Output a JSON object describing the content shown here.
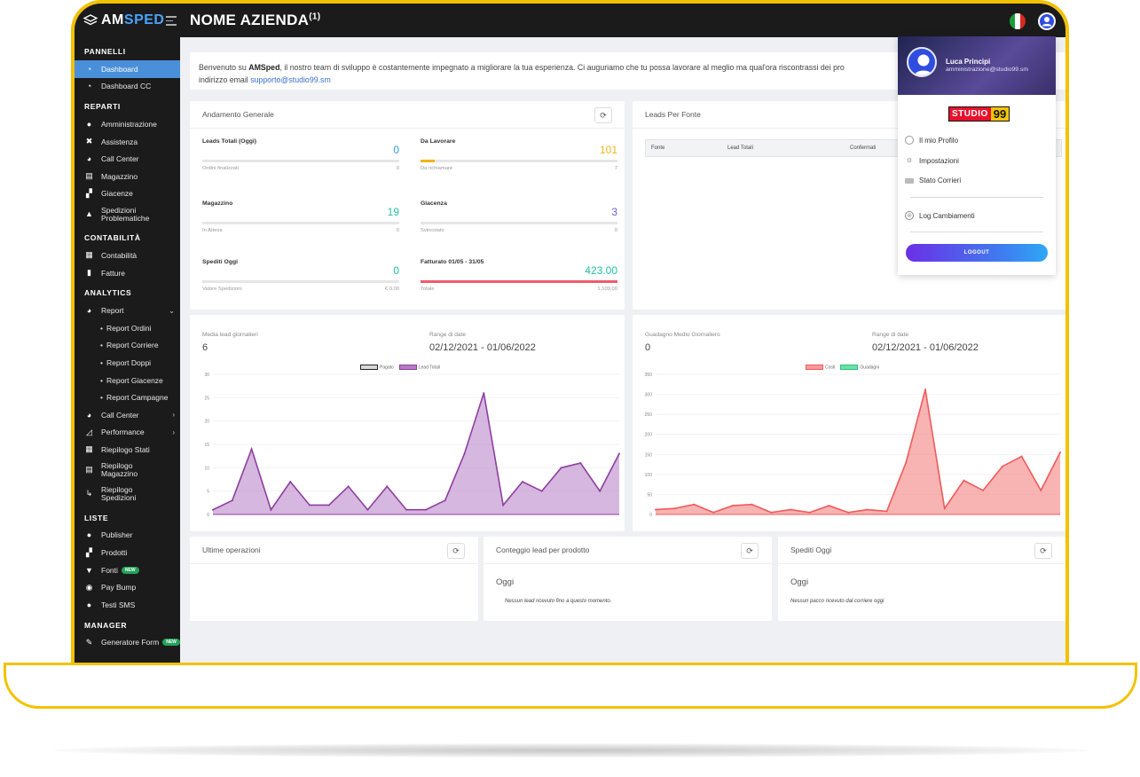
{
  "brand": {
    "am": "AM",
    "sped": "SPED"
  },
  "company": {
    "name": "NOME AZIENDA",
    "sup": "(1)"
  },
  "sidebar": {
    "sections": [
      {
        "title": "PANNELLI",
        "items": [
          {
            "label": "Dashboard",
            "icon": "dashboard-icon",
            "active": true
          },
          {
            "label": "Dashboard CC",
            "icon": "dashboard-icon"
          }
        ]
      },
      {
        "title": "REPARTI",
        "items": [
          {
            "label": "Amministrazione",
            "icon": "user-icon"
          },
          {
            "label": "Assistenza",
            "icon": "tools-icon"
          },
          {
            "label": "Call Center",
            "icon": "headset-icon"
          },
          {
            "label": "Magazzino",
            "icon": "warehouse-icon"
          },
          {
            "label": "Giacenze",
            "icon": "boxes-icon"
          },
          {
            "label": "Spedizioni Problematiche",
            "icon": "warning-icon"
          }
        ]
      },
      {
        "title": "CONTABILITÀ",
        "items": [
          {
            "label": "Contabilità",
            "icon": "calculator-icon"
          },
          {
            "label": "Fatture",
            "icon": "file-icon"
          }
        ]
      },
      {
        "title": "ANALYTICS",
        "items": [
          {
            "label": "Report",
            "icon": "pie-chart-icon"
          },
          {
            "label": "Report Ordini",
            "sub": true
          },
          {
            "label": "Report Corriere",
            "sub": true
          },
          {
            "label": "Report Doppi",
            "sub": true
          },
          {
            "label": "Report Giacenze",
            "sub": true
          },
          {
            "label": "Report Campagne",
            "sub": true
          },
          {
            "label": "Call Center",
            "icon": "headset-icon"
          },
          {
            "label": "Performance",
            "icon": "line-chart-icon"
          },
          {
            "label": "Riepilogo Stati",
            "icon": "table-icon"
          },
          {
            "label": "Riepilogo Magazzino",
            "icon": "warehouse-icon"
          },
          {
            "label": "Riepilogo Spedizioni",
            "icon": "dolly-icon"
          }
        ]
      },
      {
        "title": "LISTE",
        "items": [
          {
            "label": "Publisher",
            "icon": "user-icon"
          },
          {
            "label": "Prodotti",
            "icon": "boxes-icon"
          },
          {
            "label": "Fonti",
            "icon": "filter-icon",
            "badge": "NEW"
          },
          {
            "label": "Pay Bump",
            "icon": "money-icon"
          },
          {
            "label": "Testi SMS",
            "icon": "chat-icon"
          }
        ]
      },
      {
        "title": "MANAGER",
        "items": [
          {
            "label": "Generatore Form",
            "icon": "edit-icon",
            "badge": "NEW"
          }
        ]
      }
    ]
  },
  "welcome": {
    "prefix": "Benvenuto su ",
    "brand": "AMSped",
    "line1": ", il nostro team di sviluppo è costantemente impegnato a migliorare la tua esperienza. Ci auguriamo che tu possa lavorare al meglio ma qual'ora riscontrassi dei pro",
    "line2": "indirizzo email ",
    "email": "supporto@studio99.sm"
  },
  "andamento": {
    "title": "Andamento Generale",
    "kpis": [
      {
        "label": "Leads Totali (Oggi)",
        "value": "0",
        "color": "#2f9be8",
        "fill": 0,
        "sub": "Ordini finalizzati",
        "sub_val": "0"
      },
      {
        "label": "Da Lavorare",
        "value": "101",
        "color": "#f0b41c",
        "fill": 0.07,
        "sub": "Da richiamare",
        "sub_val": "7"
      },
      {
        "label": "Magazzino",
        "value": "19",
        "color": "#22c0a8",
        "fill": 0,
        "sub": "In Attesa",
        "sub_val": "0"
      },
      {
        "label": "Giacenza",
        "value": "3",
        "color": "#6a5fd6",
        "fill": 0,
        "sub": "Svincolato",
        "sub_val": "0"
      },
      {
        "label": "Spediti Oggi",
        "value": "0",
        "color": "#22c0a8",
        "fill": 0,
        "sub": "Valore Spedizioni",
        "sub_val": "€ 0.00"
      },
      {
        "label": "Fatturato 01/05 - 31/05",
        "value": "423.00",
        "color": "#22c0a8",
        "fill": 1,
        "bar_color": "#ef5b6e",
        "sub": "Totale",
        "sub_val": "1,109.00"
      }
    ]
  },
  "leads_fonte": {
    "title": "Leads Per Fonte",
    "columns": [
      "Fonte",
      "Lead Totali",
      "Confermati"
    ]
  },
  "chart_data": [
    {
      "type": "area",
      "meta_label": "Media lead giornalieri",
      "meta_value": "6",
      "range_label": "Range di date",
      "range_value": "02/12/2021 - 01/06/2022",
      "ylim": [
        0,
        30
      ],
      "yticks": [
        0,
        5,
        10,
        15,
        20,
        25,
        30
      ],
      "series": [
        {
          "name": "Pagato",
          "color": "#d9d9d9",
          "values": []
        },
        {
          "name": "Lead Totali",
          "color": "#b57bc4",
          "values": [
            1,
            3,
            14,
            1,
            7,
            2,
            2,
            6,
            1,
            6,
            1,
            1,
            3,
            13,
            26,
            2,
            7,
            5,
            10,
            11,
            5,
            13
          ]
        }
      ]
    },
    {
      "type": "area",
      "meta_label": "Guadagno Medio Giornaliero",
      "meta_value": "0",
      "range_label": "Range di date",
      "range_value": "02/12/2021 - 01/06/2022",
      "ylim": [
        0,
        350
      ],
      "yticks": [
        0,
        50,
        100,
        150,
        200,
        250,
        300,
        350
      ],
      "series": [
        {
          "name": "Costi",
          "color": "#f59a9a",
          "values": [
            12,
            15,
            25,
            5,
            22,
            25,
            5,
            12,
            5,
            22,
            5,
            12,
            8,
            130,
            312,
            15,
            85,
            60,
            120,
            145,
            60,
            155
          ]
        },
        {
          "name": "Guadagni",
          "color": "#6be0a8",
          "values": []
        }
      ]
    }
  ],
  "bottom": {
    "ultime": {
      "title": "Ultime operazioni"
    },
    "conteggio": {
      "title": "Conteggio lead per prodotto",
      "oggi": "Oggi",
      "empty": "Nessun lead ricevuto fino a questo momento."
    },
    "spediti": {
      "title": "Spediti Oggi",
      "oggi": "Oggi",
      "empty": "Nessun pacco ricevuto dal corriere oggi"
    }
  },
  "user_menu": {
    "name": "Luca Principi",
    "email": "amministrazione@studio99.sm",
    "logo_a": "STUDIO",
    "logo_b": "99",
    "items": [
      {
        "label": "Il mio Profilo",
        "icon": "user-circle-icon"
      },
      {
        "label": "Impostazioni",
        "icon": "gear-icon"
      },
      {
        "label": "Stato Corrieri",
        "icon": "truck-icon"
      },
      {
        "label": "Log Cambiamenti",
        "icon": "globe-icon"
      }
    ],
    "logout": "LOGOUT"
  }
}
